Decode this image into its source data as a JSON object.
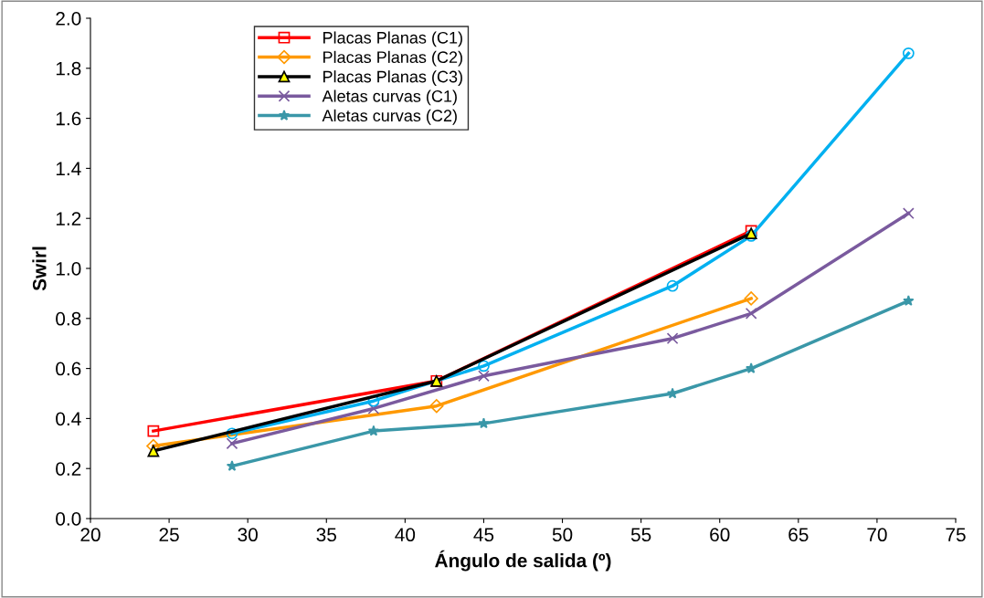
{
  "chart_data": {
    "type": "line",
    "xlabel": "Ángulo de salida (º)",
    "ylabel": "Swirl",
    "xlim": [
      20,
      75
    ],
    "xticks": [
      20,
      25,
      30,
      35,
      40,
      45,
      50,
      55,
      60,
      65,
      70,
      75
    ],
    "ylim": [
      0,
      2.0
    ],
    "yticks": [
      {
        "value": 0,
        "label": "0.0"
      },
      {
        "value": 0.2,
        "label": "0.2"
      },
      {
        "value": 0.4,
        "label": "0.4"
      },
      {
        "value": 0.6,
        "label": "0.6"
      },
      {
        "value": 0.8,
        "label": "0.8"
      },
      {
        "value": 1.0,
        "label": "1.0"
      },
      {
        "value": 1.2,
        "label": "1.2"
      },
      {
        "value": 1.4,
        "label": "1.4"
      },
      {
        "value": 1.6,
        "label": "1.6"
      },
      {
        "value": 1.8,
        "label": "1.8"
      },
      {
        "value": 2.0,
        "label": "2.0"
      }
    ],
    "grid": false,
    "legend": "top left",
    "line_style": "solid",
    "series": [
      {
        "name": "Placas Planas (C1)",
        "color": "#ff0000",
        "marker": "square",
        "x": [
          24,
          42,
          62
        ],
        "values": [
          0.35,
          0.55,
          1.15
        ]
      },
      {
        "name": "Placas Planas (C2)",
        "color": "#ff9900",
        "marker": "diamond",
        "x": [
          24,
          42,
          62
        ],
        "values": [
          0.29,
          0.45,
          0.88
        ]
      },
      {
        "name": "Placas Planas (C3)",
        "color": "#000000",
        "marker": "triangle",
        "x": [
          24,
          42,
          62
        ],
        "values": [
          0.27,
          0.55,
          1.14
        ]
      },
      {
        "name": "Aletas curvas (C1)",
        "color": "#7a5a9e",
        "marker": "cross",
        "x": [
          29,
          38,
          45,
          57,
          62,
          72
        ],
        "values": [
          0.3,
          0.44,
          0.57,
          0.72,
          0.82,
          1.22
        ]
      },
      {
        "name": "Aletas curvas (C2)",
        "color": "#3a97a8",
        "marker": "star",
        "x": [
          29,
          38,
          45,
          57,
          62,
          72
        ],
        "values": [
          0.21,
          0.35,
          0.38,
          0.5,
          0.6,
          0.87
        ]
      },
      {
        "color": "#00b0f0",
        "marker": "circle",
        "x": [
          29,
          38,
          45,
          57,
          62,
          72
        ],
        "values": [
          0.34,
          0.47,
          0.61,
          0.93,
          1.13,
          1.86
        ]
      }
    ]
  }
}
